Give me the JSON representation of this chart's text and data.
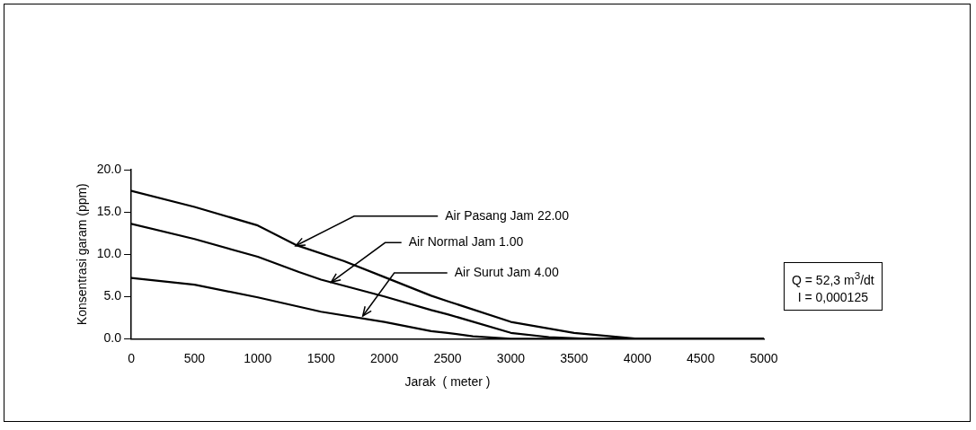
{
  "chart_data": {
    "type": "line",
    "xlabel": "Jarak  ( meter )",
    "ylabel": "Konsentrasi garam (ppm)",
    "xlim": [
      0,
      5000
    ],
    "xticks": [
      0,
      500,
      1000,
      1500,
      2000,
      2500,
      3000,
      3500,
      4000,
      4500,
      5000
    ],
    "ylim": [
      0,
      20
    ],
    "yticks": [
      {
        "value": 0,
        "label": "0.0"
      },
      {
        "value": 5,
        "label": "5.0"
      },
      {
        "value": 10,
        "label": "10.0"
      },
      {
        "value": 15,
        "label": "15.0"
      },
      {
        "value": 20,
        "label": "20.0"
      }
    ],
    "grid": false,
    "legend": false,
    "series": [
      {
        "color": "#000000",
        "x": [
          0,
          500,
          1000,
          1300,
          1680,
          2000,
          2370,
          2510,
          3000,
          3500,
          4000,
          4500,
          5000
        ],
        "values": [
          17.5,
          15.6,
          13.4,
          11.1,
          9.2,
          7.3,
          5.1,
          4.4,
          2.0,
          0.7,
          0,
          0,
          0
        ]
      },
      {
        "color": "#000000",
        "x": [
          0,
          500,
          1000,
          1325,
          1500,
          2000,
          2370,
          2500,
          3000,
          3300,
          3600,
          4000,
          5000
        ],
        "values": [
          13.6,
          11.8,
          9.7,
          7.9,
          7.0,
          5.0,
          3.4,
          2.9,
          0.7,
          0.2,
          0,
          0,
          0
        ]
      },
      {
        "color": "#000000",
        "x": [
          0,
          500,
          1000,
          1500,
          2000,
          2370,
          2500,
          2700,
          3000,
          4000,
          5000
        ],
        "values": [
          7.2,
          6.4,
          4.9,
          3.2,
          2.0,
          0.9,
          0.7,
          0.3,
          0,
          0,
          0
        ]
      }
    ],
    "annotations": [
      {
        "text": "Air Pasang Jam 22.00",
        "x": 1300,
        "y": 11.0
      },
      {
        "text": "Air Normal Jam 1.00",
        "x": 1580,
        "y": 6.7
      },
      {
        "text": "Air Surut Jam 4.00",
        "x": 1830,
        "y": 2.7
      },
      "Q = 52,3 m$^{3}$/dt",
      "I = 0,000125"
    ]
  }
}
